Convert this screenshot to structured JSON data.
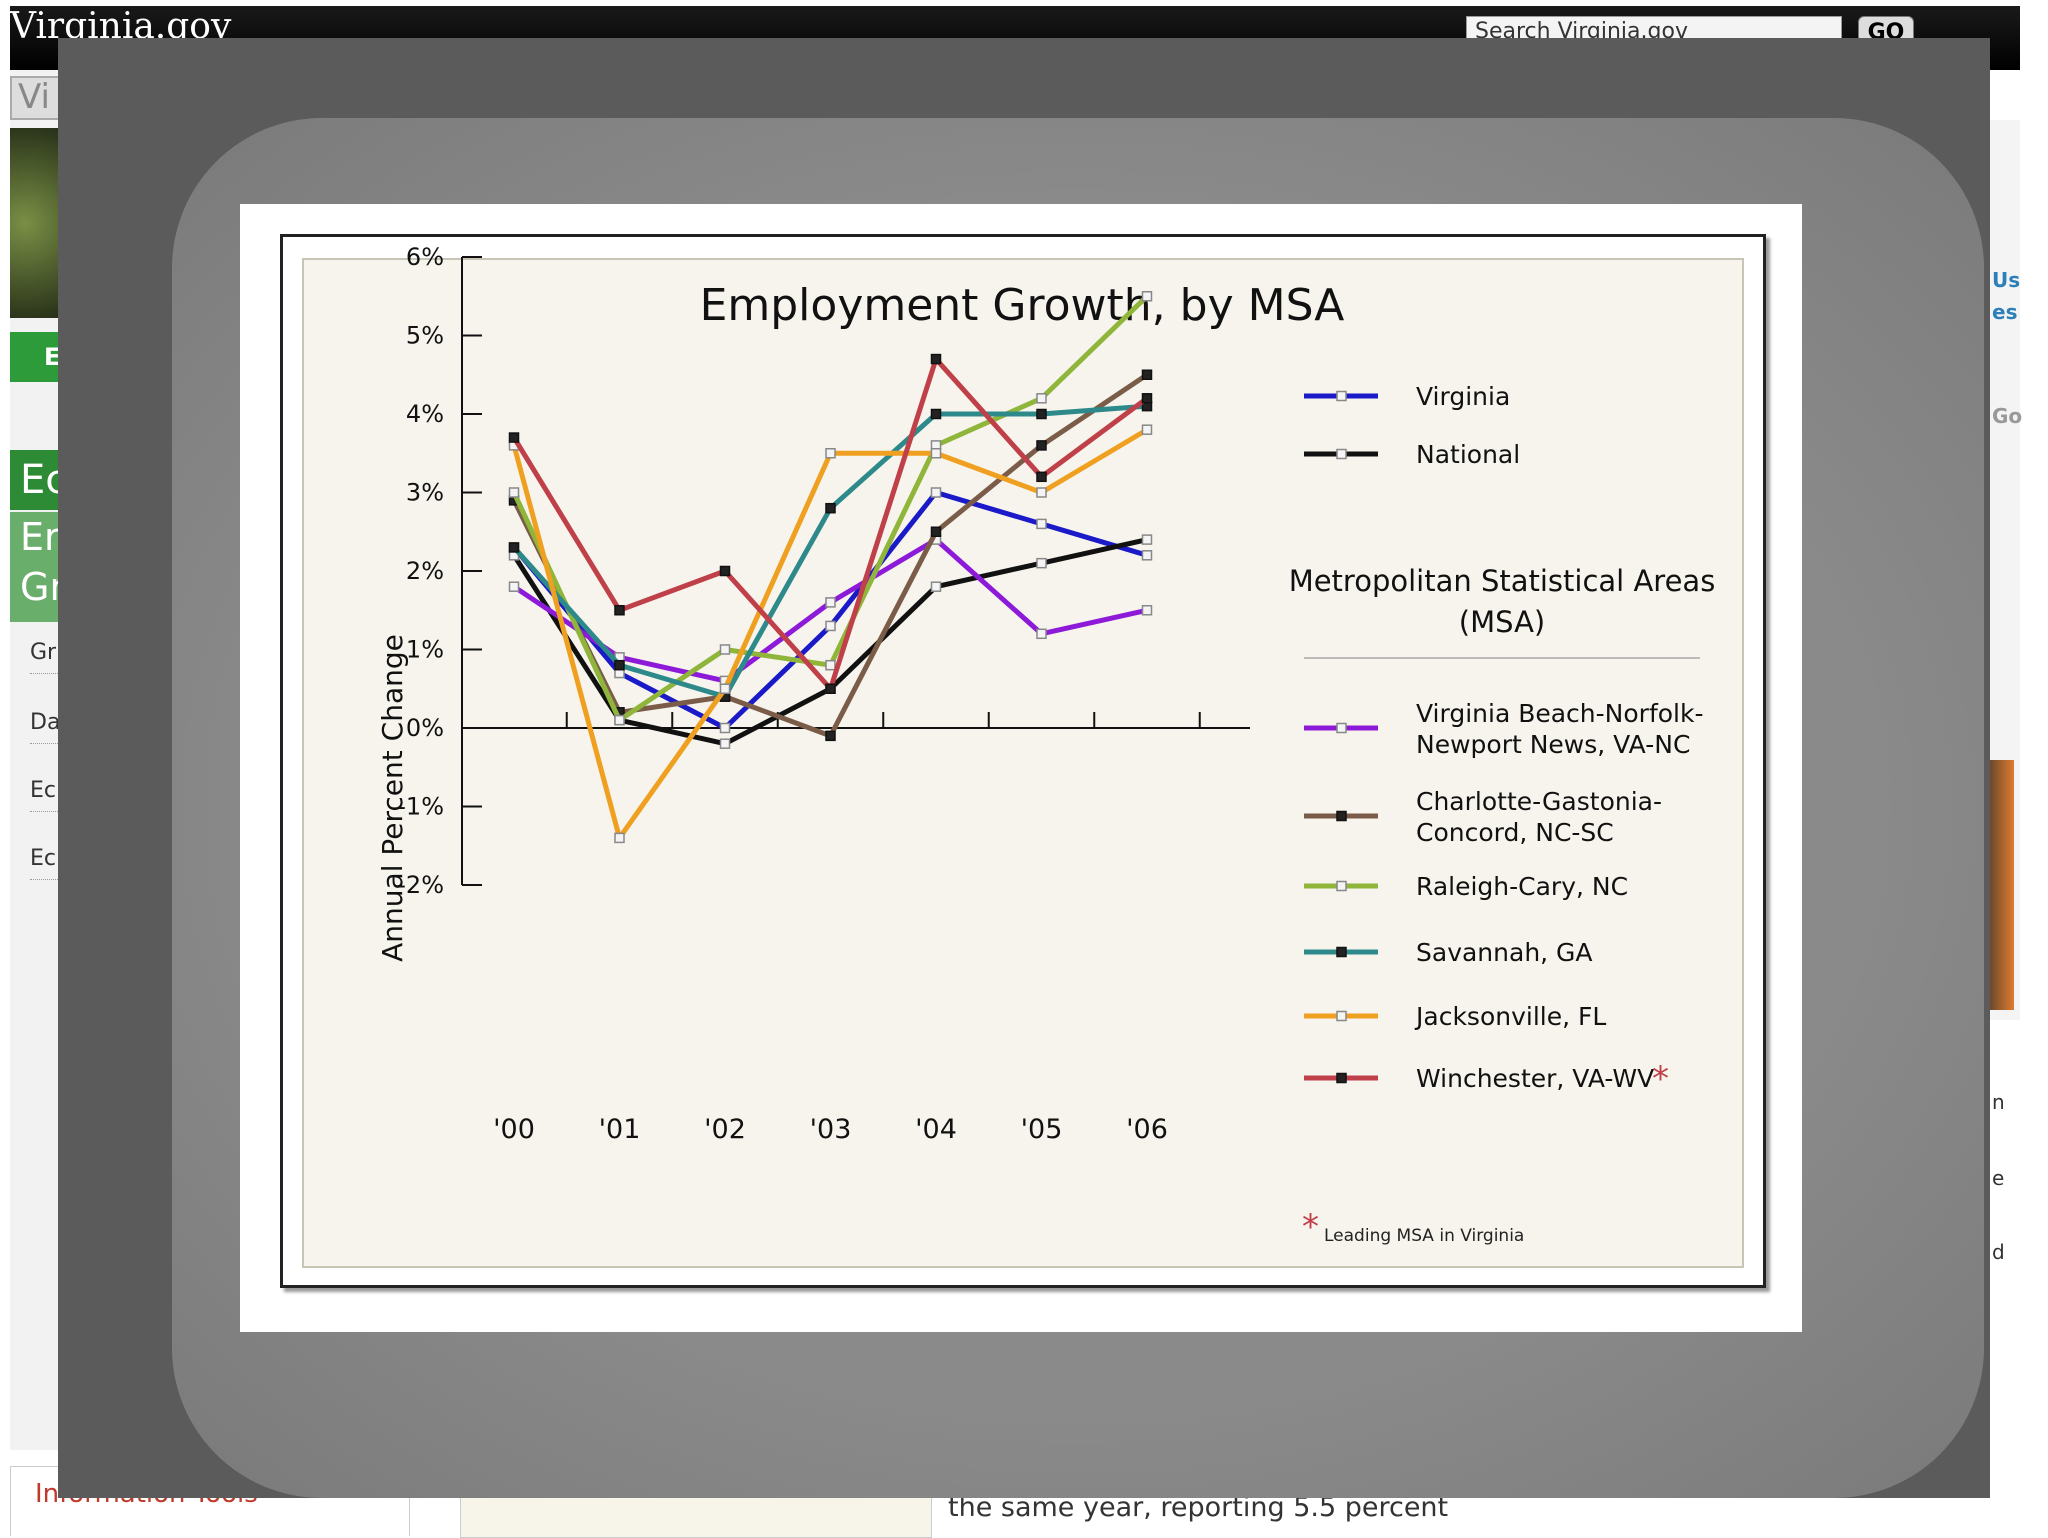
{
  "site": {
    "logo": "Virginia.gov",
    "search_placeholder": "Search Virginia.gov",
    "go_label": "GO",
    "left_nav_text": "Vi",
    "green_button": "E",
    "section_head1": "Ec",
    "section_head2": "Er Gr",
    "left_links": [
      "Gr",
      "Da",
      "Ec",
      "Ec"
    ],
    "right_side": [
      "Us",
      "es",
      "Go",
      "n",
      "e",
      "d"
    ],
    "info_tools": "Information Tools",
    "body_text": "the same year, reporting 5.5 percent"
  },
  "chart_data": {
    "type": "line",
    "title": "Employment Growth, by MSA",
    "ylabel": "Annual Percent Change",
    "xlabel": "",
    "categories": [
      "'00",
      "'01",
      "'02",
      "'03",
      "'04",
      "'05",
      "'06"
    ],
    "ylim": [
      -2,
      6
    ],
    "yticks": [
      "6%",
      "5%",
      "4%",
      "3%",
      "2%",
      "1%",
      "0%",
      "-1%",
      "-2%"
    ],
    "legend_msa_header": "Metropolitan Statistical Areas (MSA)",
    "footnote": "Leading MSA in Virginia",
    "footnote_marker": "*",
    "series": [
      {
        "name": "Virginia",
        "color": "#1a1ac8",
        "marker": "square-open",
        "values": [
          2.3,
          0.7,
          0.0,
          1.3,
          3.0,
          2.6,
          2.2
        ]
      },
      {
        "name": "National",
        "color": "#111111",
        "marker": "square-open",
        "values": [
          2.2,
          0.1,
          -0.2,
          0.5,
          1.8,
          2.1,
          2.4
        ]
      },
      {
        "name": "Virginia Beach-Norfolk-\nNewport News, VA-NC",
        "color": "#8c1ad8",
        "marker": "square-open",
        "values": [
          1.8,
          0.9,
          0.6,
          1.6,
          2.4,
          1.2,
          1.5
        ]
      },
      {
        "name": "Charlotte-Gastonia-\nConcord, NC-SC",
        "color": "#7a5c48",
        "marker": "square-filled",
        "values": [
          2.9,
          0.2,
          0.4,
          -0.1,
          2.5,
          3.6,
          4.5
        ]
      },
      {
        "name": "Raleigh-Cary, NC",
        "color": "#8fb53a",
        "marker": "square-open",
        "values": [
          3.0,
          0.1,
          1.0,
          0.8,
          3.6,
          4.2,
          5.5
        ]
      },
      {
        "name": "Savannah, GA",
        "color": "#2e8a8a",
        "marker": "square-filled",
        "values": [
          2.3,
          0.8,
          0.4,
          2.8,
          4.0,
          4.0,
          4.1
        ]
      },
      {
        "name": "Jacksonville, FL",
        "color": "#f0a020",
        "marker": "square-open",
        "values": [
          3.6,
          -1.4,
          0.5,
          3.5,
          3.5,
          3.0,
          3.8
        ]
      },
      {
        "name": "Winchester, VA-WV",
        "color": "#c0404a",
        "marker": "square-filled",
        "values": [
          3.7,
          1.5,
          2.0,
          0.5,
          4.7,
          3.2,
          4.2
        ],
        "leading": true
      }
    ]
  }
}
